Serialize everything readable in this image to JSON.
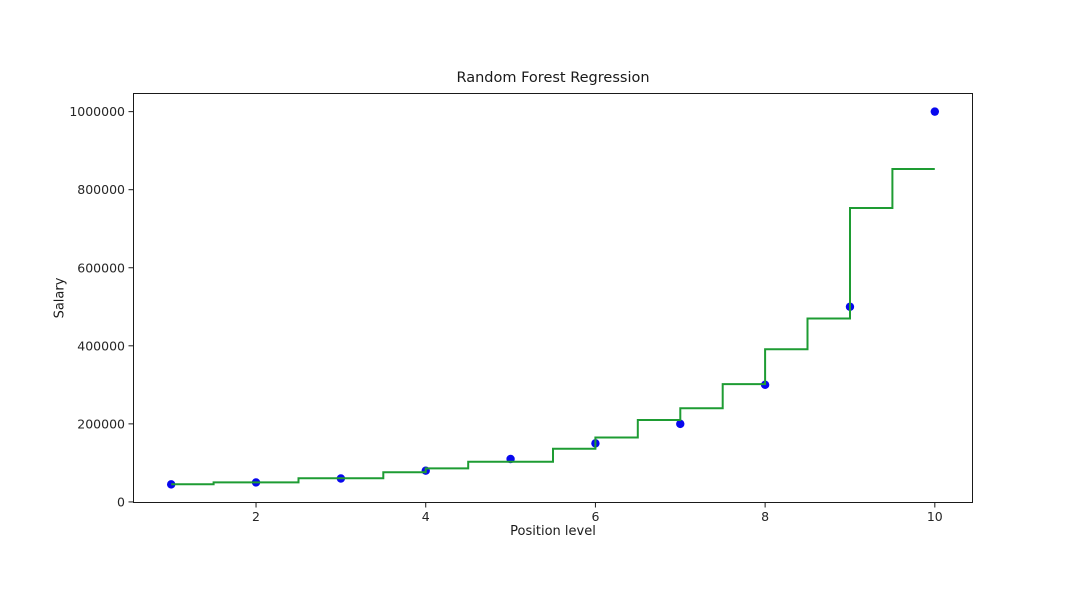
{
  "chart_data": {
    "type": "scatter",
    "title": "Random Forest Regression",
    "xlabel": "Position level",
    "ylabel": "Salary",
    "xlim": [
      0.55,
      10.45
    ],
    "ylim": [
      -2750,
      1047750
    ],
    "x_ticks": [
      2,
      4,
      6,
      8,
      10
    ],
    "y_ticks": [
      0,
      200000,
      400000,
      600000,
      800000,
      1000000
    ],
    "grid": false,
    "legend_position": "none",
    "axis_color": "#1a1a1a",
    "tick_label_color": "#262626",
    "scatter": {
      "name": "actual-salaries",
      "color": "#0808ee",
      "marker_radius": 4.2,
      "x": [
        1,
        2,
        3,
        4,
        5,
        6,
        7,
        8,
        9,
        10
      ],
      "y": [
        45000,
        50000,
        60000,
        80000,
        110000,
        150000,
        200000,
        300000,
        500000,
        1000000
      ]
    },
    "series": [
      {
        "name": "random-forest-prediction-step-line",
        "color": "#1e9c33",
        "line_width": 2,
        "steps": [
          {
            "from": 1.0,
            "to": 1.5,
            "value": 45500
          },
          {
            "from": 1.5,
            "to": 2.5,
            "value": 50000
          },
          {
            "from": 2.5,
            "to": 3.5,
            "value": 60500
          },
          {
            "from": 3.5,
            "to": 4.0,
            "value": 76000
          },
          {
            "from": 4.0,
            "to": 4.5,
            "value": 86000
          },
          {
            "from": 4.5,
            "to": 5.5,
            "value": 103000
          },
          {
            "from": 5.5,
            "to": 6.0,
            "value": 136000
          },
          {
            "from": 6.0,
            "to": 6.5,
            "value": 165000
          },
          {
            "from": 6.5,
            "to": 7.0,
            "value": 210000
          },
          {
            "from": 7.0,
            "to": 7.5,
            "value": 240000
          },
          {
            "from": 7.5,
            "to": 8.0,
            "value": 302000
          },
          {
            "from": 8.0,
            "to": 8.5,
            "value": 391000
          },
          {
            "from": 8.5,
            "to": 9.0,
            "value": 470000
          },
          {
            "from": 9.0,
            "to": 9.5,
            "value": 753000
          },
          {
            "from": 9.5,
            "to": 10.0,
            "value": 853000
          }
        ]
      }
    ]
  }
}
